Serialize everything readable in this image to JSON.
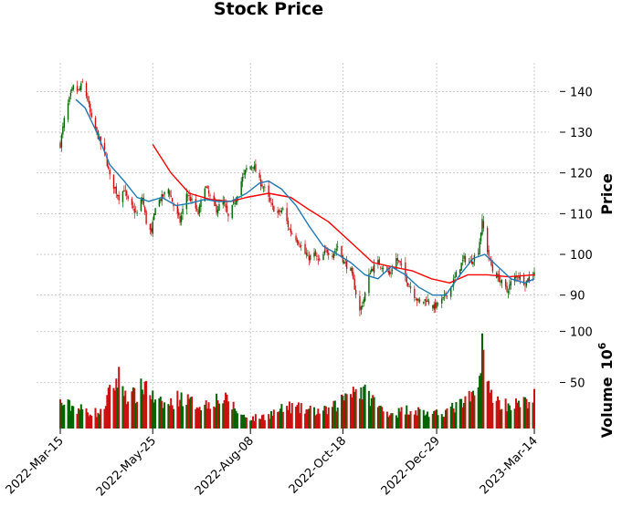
{
  "chart_data": {
    "type": "candlestick",
    "title": "Stock Price",
    "price_panel": {
      "ylabel": "Price",
      "yticks": [
        90,
        100,
        110,
        120,
        130,
        140
      ],
      "ylim": [
        83,
        147
      ],
      "up_color": "#006400",
      "down_color": "#cc1111",
      "ma_short_color": "#1f77b4",
      "ma_long_color": "#ff0000",
      "close_path": [
        [
          "2022-03-15",
          127
        ],
        [
          "2022-03-18",
          133
        ],
        [
          "2022-03-22",
          138
        ],
        [
          "2022-03-25",
          141
        ],
        [
          "2022-03-29",
          140
        ],
        [
          "2022-04-01",
          142
        ],
        [
          "2022-04-05",
          138
        ],
        [
          "2022-04-08",
          133
        ],
        [
          "2022-04-12",
          130
        ],
        [
          "2022-04-15",
          127
        ],
        [
          "2022-04-19",
          124
        ],
        [
          "2022-04-22",
          119
        ],
        [
          "2022-04-26",
          116
        ],
        [
          "2022-04-29",
          114
        ],
        [
          "2022-05-03",
          116
        ],
        [
          "2022-05-06",
          113
        ],
        [
          "2022-05-10",
          111
        ],
        [
          "2022-05-13",
          110
        ],
        [
          "2022-05-17",
          114
        ],
        [
          "2022-05-20",
          108
        ],
        [
          "2022-05-24",
          105
        ],
        [
          "2022-05-27",
          112
        ],
        [
          "2022-06-01",
          114
        ],
        [
          "2022-06-06",
          116
        ],
        [
          "2022-06-10",
          112
        ],
        [
          "2022-06-15",
          108
        ],
        [
          "2022-06-20",
          115
        ],
        [
          "2022-06-24",
          113
        ],
        [
          "2022-06-29",
          110
        ],
        [
          "2022-07-04",
          117
        ],
        [
          "2022-07-08",
          114
        ],
        [
          "2022-07-13",
          111
        ],
        [
          "2022-07-18",
          113
        ],
        [
          "2022-07-22",
          109
        ],
        [
          "2022-07-27",
          113
        ],
        [
          "2022-08-01",
          118
        ],
        [
          "2022-08-05",
          121
        ],
        [
          "2022-08-10",
          122
        ],
        [
          "2022-08-15",
          118
        ],
        [
          "2022-08-19",
          116
        ],
        [
          "2022-08-24",
          112
        ],
        [
          "2022-08-29",
          110
        ],
        [
          "2022-09-02",
          111
        ],
        [
          "2022-09-07",
          106
        ],
        [
          "2022-09-12",
          104
        ],
        [
          "2022-09-16",
          102
        ],
        [
          "2022-09-21",
          99
        ],
        [
          "2022-09-26",
          100
        ],
        [
          "2022-09-30",
          98
        ],
        [
          "2022-10-05",
          101
        ],
        [
          "2022-10-10",
          100
        ],
        [
          "2022-10-14",
          102
        ],
        [
          "2022-10-19",
          98
        ],
        [
          "2022-10-24",
          96
        ],
        [
          "2022-10-27",
          92
        ],
        [
          "2022-10-31",
          86
        ],
        [
          "2022-11-03",
          89
        ],
        [
          "2022-11-08",
          96
        ],
        [
          "2022-11-14",
          98
        ],
        [
          "2022-11-18",
          97
        ],
        [
          "2022-11-23",
          95
        ],
        [
          "2022-11-28",
          99
        ],
        [
          "2022-12-02",
          97
        ],
        [
          "2022-12-07",
          93
        ],
        [
          "2022-12-12",
          90
        ],
        [
          "2022-12-16",
          88
        ],
        [
          "2022-12-21",
          89
        ],
        [
          "2022-12-27",
          87
        ],
        [
          "2023-01-03",
          89
        ],
        [
          "2023-01-09",
          92
        ],
        [
          "2023-01-13",
          95
        ],
        [
          "2023-01-19",
          99
        ],
        [
          "2023-01-24",
          98
        ],
        [
          "2023-01-30",
          101
        ],
        [
          "2023-02-02",
          108
        ],
        [
          "2023-02-06",
          101
        ],
        [
          "2023-02-10",
          96
        ],
        [
          "2023-02-15",
          94
        ],
        [
          "2023-02-21",
          91
        ],
        [
          "2023-02-24",
          93
        ],
        [
          "2023-03-01",
          95
        ],
        [
          "2023-03-07",
          93
        ],
        [
          "2023-03-14",
          96
        ]
      ],
      "ma_short": [
        [
          "2022-03-27",
          138
        ],
        [
          "2022-04-03",
          136
        ],
        [
          "2022-04-12",
          130
        ],
        [
          "2022-04-22",
          122
        ],
        [
          "2022-05-03",
          118
        ],
        [
          "2022-05-13",
          114
        ],
        [
          "2022-05-22",
          113
        ],
        [
          "2022-06-01",
          114
        ],
        [
          "2022-06-12",
          112
        ],
        [
          "2022-06-22",
          112.5
        ],
        [
          "2022-07-04",
          113.5
        ],
        [
          "2022-07-14",
          113
        ],
        [
          "2022-07-24",
          113
        ],
        [
          "2022-08-05",
          115
        ],
        [
          "2022-08-15",
          117.5
        ],
        [
          "2022-08-22",
          118
        ],
        [
          "2022-09-01",
          116
        ],
        [
          "2022-09-12",
          112
        ],
        [
          "2022-09-22",
          107
        ],
        [
          "2022-10-03",
          102
        ],
        [
          "2022-10-14",
          100
        ],
        [
          "2022-10-24",
          98
        ],
        [
          "2022-11-04",
          95
        ],
        [
          "2022-11-14",
          94
        ],
        [
          "2022-11-24",
          97
        ],
        [
          "2022-12-05",
          95
        ],
        [
          "2022-12-15",
          92
        ],
        [
          "2022-12-26",
          90
        ],
        [
          "2023-01-05",
          90
        ],
        [
          "2023-01-16",
          95
        ],
        [
          "2023-01-26",
          99
        ],
        [
          "2023-02-04",
          100
        ],
        [
          "2023-02-14",
          97
        ],
        [
          "2023-02-24",
          94
        ],
        [
          "2023-03-07",
          93
        ],
        [
          "2023-03-14",
          94
        ]
      ],
      "ma_long": [
        [
          "2022-05-25",
          127
        ],
        [
          "2022-06-08",
          120
        ],
        [
          "2022-06-22",
          115
        ],
        [
          "2022-07-08",
          113.5
        ],
        [
          "2022-07-24",
          113
        ],
        [
          "2022-08-05",
          114
        ],
        [
          "2022-08-22",
          115
        ],
        [
          "2022-09-08",
          114
        ],
        [
          "2022-09-22",
          111
        ],
        [
          "2022-10-07",
          108
        ],
        [
          "2022-10-24",
          103
        ],
        [
          "2022-11-10",
          98
        ],
        [
          "2022-11-24",
          97
        ],
        [
          "2022-12-10",
          96
        ],
        [
          "2022-12-25",
          94
        ],
        [
          "2023-01-08",
          93
        ],
        [
          "2023-01-22",
          95
        ],
        [
          "2023-02-06",
          95
        ],
        [
          "2023-02-22",
          94.5
        ],
        [
          "2023-03-14",
          95
        ]
      ]
    },
    "volume_panel": {
      "ylabel": "Volume",
      "multiplier_label": "10",
      "multiplier_exponent": "6",
      "yticks": [
        50,
        100
      ],
      "ylim": [
        5,
        103
      ],
      "volume_path_millions": [
        [
          "2022-03-15",
          30
        ],
        [
          "2022-03-25",
          26
        ],
        [
          "2022-04-05",
          22
        ],
        [
          "2022-04-15",
          20
        ],
        [
          "2022-04-22",
          40
        ],
        [
          "2022-04-29",
          55
        ],
        [
          "2022-05-06",
          35
        ],
        [
          "2022-05-13",
          38
        ],
        [
          "2022-05-20",
          50
        ],
        [
          "2022-05-27",
          30
        ],
        [
          "2022-06-06",
          28
        ],
        [
          "2022-06-15",
          36
        ],
        [
          "2022-06-24",
          30
        ],
        [
          "2022-07-04",
          28
        ],
        [
          "2022-07-13",
          34
        ],
        [
          "2022-07-22",
          32
        ],
        [
          "2022-08-01",
          18
        ],
        [
          "2022-08-10",
          15
        ],
        [
          "2022-08-19",
          17
        ],
        [
          "2022-08-29",
          22
        ],
        [
          "2022-09-07",
          26
        ],
        [
          "2022-09-16",
          24
        ],
        [
          "2022-09-26",
          22
        ],
        [
          "2022-10-05",
          22
        ],
        [
          "2022-10-14",
          28
        ],
        [
          "2022-10-24",
          45
        ],
        [
          "2022-10-31",
          42
        ],
        [
          "2022-11-08",
          36
        ],
        [
          "2022-11-18",
          22
        ],
        [
          "2022-11-28",
          20
        ],
        [
          "2022-12-07",
          24
        ],
        [
          "2022-12-16",
          22
        ],
        [
          "2022-12-27",
          18
        ],
        [
          "2023-01-09",
          24
        ],
        [
          "2023-01-19",
          30
        ],
        [
          "2023-01-30",
          40
        ],
        [
          "2023-02-02",
          98
        ],
        [
          "2023-02-06",
          45
        ],
        [
          "2023-02-15",
          30
        ],
        [
          "2023-02-24",
          28
        ],
        [
          "2023-03-07",
          30
        ],
        [
          "2023-03-14",
          36
        ]
      ]
    },
    "x_axis": {
      "range": [
        "2022-03-15",
        "2023-03-14"
      ],
      "ticks": [
        "2022-Mar-15",
        "2022-May-25",
        "2022-Aug-08",
        "2022-Oct-18",
        "2022-Dec-29",
        "2023-Mar-14"
      ]
    },
    "grid": true
  }
}
